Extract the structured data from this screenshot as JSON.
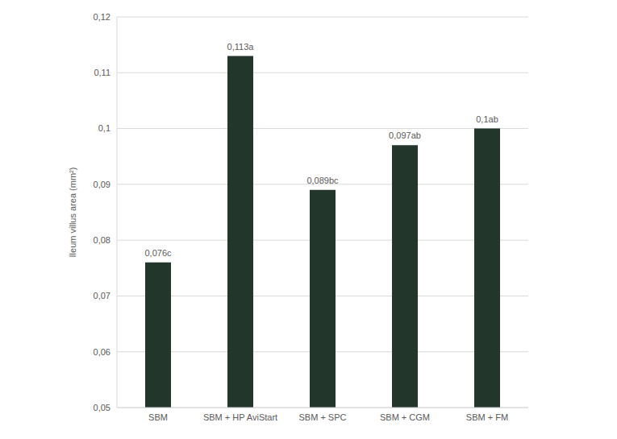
{
  "chart_data": {
    "type": "bar",
    "y_label": "Ileum villus area (mm²)",
    "categories": [
      "SBM",
      "SBM + HP AviStart",
      "SBM + SPC",
      "SBM + CGM",
      "SBM + FM"
    ],
    "values": [
      0.076,
      0.113,
      0.089,
      0.097,
      0.1
    ],
    "value_labels": [
      "0,076c",
      "0,113a",
      "0,089bc",
      "0,097ab",
      "0,1ab"
    ],
    "data_labels": true,
    "color": "#23362c",
    "ylim": [
      0.05,
      0.12
    ],
    "yticks": [
      {
        "value": 0.05,
        "label": "0,05"
      },
      {
        "value": 0.06,
        "label": "0,06"
      },
      {
        "value": 0.07,
        "label": "0,07"
      },
      {
        "value": 0.08,
        "label": "0,08"
      },
      {
        "value": 0.09,
        "label": "0,09"
      },
      {
        "value": 0.1,
        "label": "0,1"
      },
      {
        "value": 0.11,
        "label": "0,11"
      },
      {
        "value": 0.12,
        "label": "0,12"
      }
    ],
    "grid": true
  }
}
